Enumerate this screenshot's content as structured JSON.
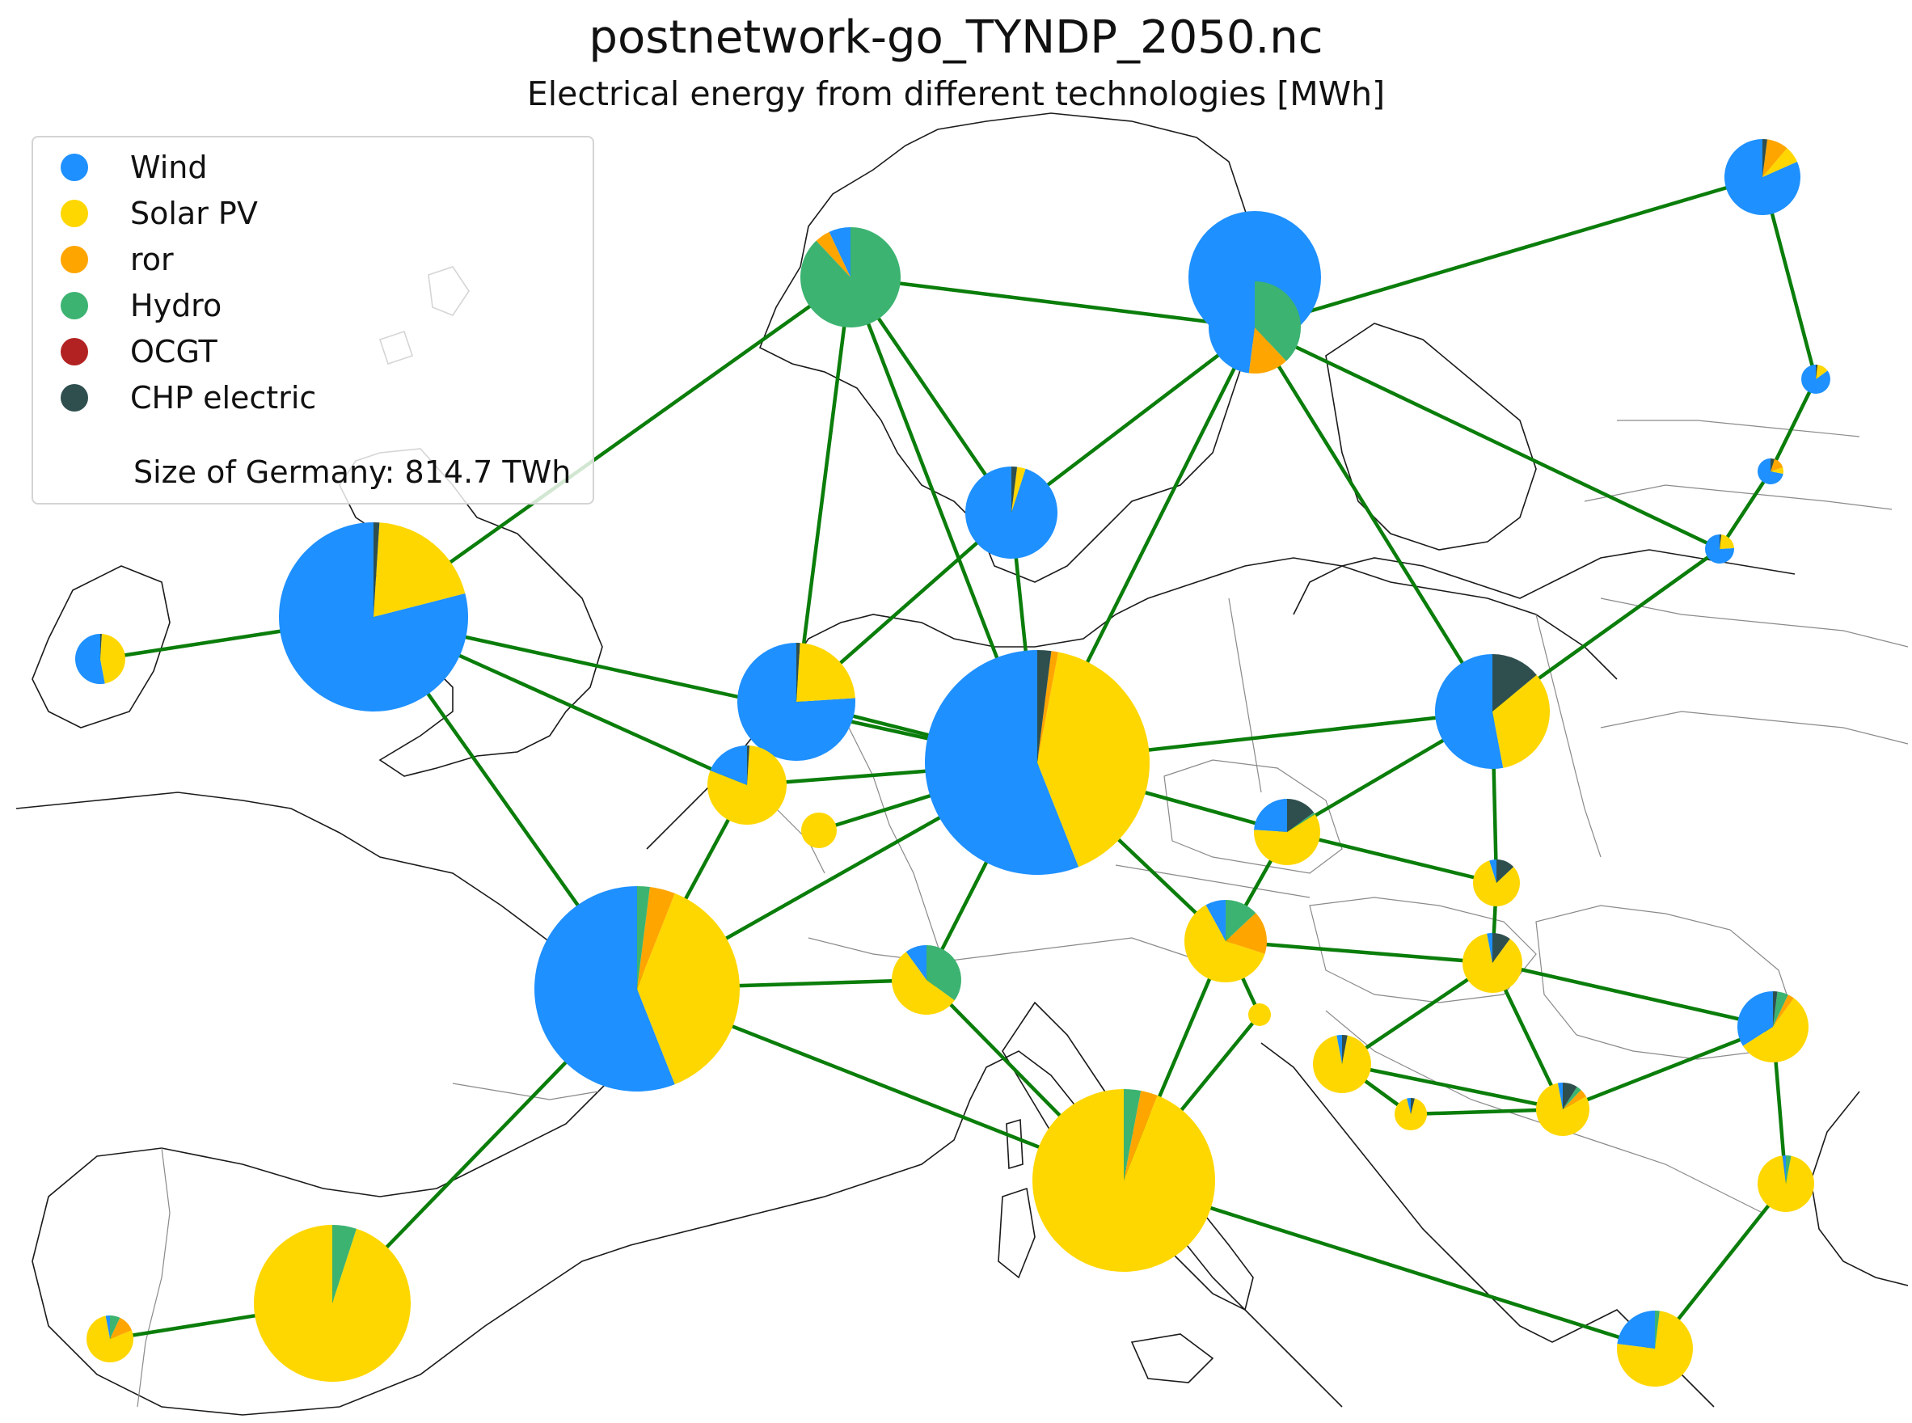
{
  "title": "postnetwork-go_TYNDP_2050.nc",
  "subtitle": "Electrical energy from different technologies [MWh]",
  "legend": {
    "items": [
      {
        "label": "Wind",
        "color": "#1e90ff"
      },
      {
        "label": "Solar PV",
        "color": "#ffd700"
      },
      {
        "label": "ror",
        "color": "#ffa500"
      },
      {
        "label": "Hydro",
        "color": "#3cb371"
      },
      {
        "label": "OCGT",
        "color": "#b22222"
      },
      {
        "label": "CHP electric",
        "color": "#2f4f4f"
      }
    ],
    "size_note": "Size of Germany: 814.7 TWh"
  },
  "colors": {
    "link": "#0a7d0a",
    "coastline": "#1a1a1a",
    "border": "#8a8a8a",
    "wedge_edge": "#ffffff"
  }
}
